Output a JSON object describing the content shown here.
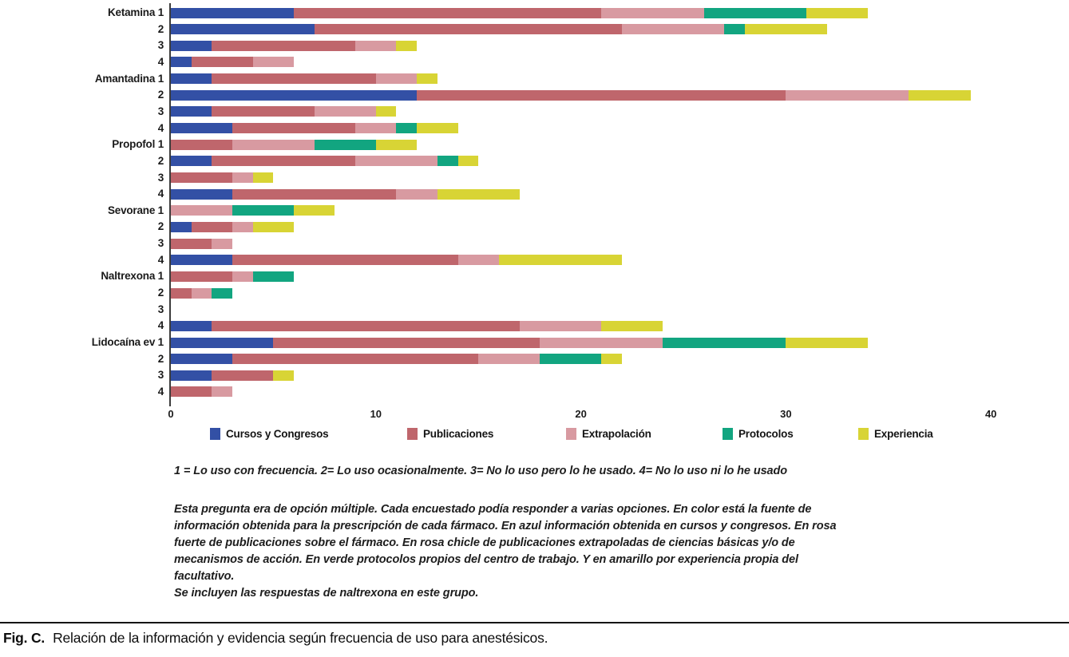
{
  "chart_data": {
    "type": "bar",
    "orientation": "horizontal",
    "stacked": true,
    "title": "",
    "xlabel": "",
    "ylabel": "",
    "xlim": [
      0,
      40
    ],
    "x_ticks": [
      0,
      10,
      20,
      30,
      40
    ],
    "grid": false,
    "legend_position": "bottom",
    "series_names": [
      "Cursos y Congresos",
      "Publicaciones",
      "Extrapolación",
      "Protocolos",
      "Experiencia"
    ],
    "series_colors": [
      "#3350a5",
      "#bf666c",
      "#d89aa1",
      "#12a580",
      "#d8d435"
    ],
    "rows": [
      {
        "label": "Ketamina 1",
        "values": [
          6,
          15,
          5,
          5,
          3
        ]
      },
      {
        "label": "2",
        "values": [
          7,
          15,
          5,
          1,
          4
        ]
      },
      {
        "label": "3",
        "values": [
          2,
          7,
          2,
          0,
          1
        ]
      },
      {
        "label": "4",
        "values": [
          1,
          3,
          2,
          0,
          0
        ]
      },
      {
        "label": "Amantadina 1",
        "values": [
          2,
          8,
          2,
          0,
          1
        ]
      },
      {
        "label": "2",
        "values": [
          12,
          18,
          6,
          0,
          3
        ]
      },
      {
        "label": "3",
        "values": [
          2,
          5,
          3,
          0,
          1
        ]
      },
      {
        "label": "4",
        "values": [
          3,
          6,
          2,
          1,
          2
        ]
      },
      {
        "label": "Propofol 1",
        "values": [
          0,
          3,
          4,
          3,
          2
        ]
      },
      {
        "label": "2",
        "values": [
          2,
          7,
          4,
          1,
          1
        ]
      },
      {
        "label": "3",
        "values": [
          0,
          3,
          1,
          0,
          1
        ]
      },
      {
        "label": "4",
        "values": [
          3,
          8,
          2,
          0,
          4
        ]
      },
      {
        "label": "Sevorane 1",
        "values": [
          0,
          0,
          3,
          3,
          2
        ]
      },
      {
        "label": "2",
        "values": [
          1,
          2,
          1,
          0,
          2
        ]
      },
      {
        "label": "3",
        "values": [
          0,
          2,
          1,
          0,
          0
        ]
      },
      {
        "label": "4",
        "values": [
          3,
          11,
          2,
          0,
          6
        ]
      },
      {
        "label": "Naltrexona 1",
        "values": [
          0,
          3,
          1,
          2,
          0
        ]
      },
      {
        "label": "2",
        "values": [
          0,
          1,
          1,
          1,
          0
        ]
      },
      {
        "label": "3",
        "values": [
          0,
          0,
          0,
          0,
          0
        ]
      },
      {
        "label": "4",
        "values": [
          2,
          15,
          4,
          0,
          3
        ]
      },
      {
        "label": "Lidocaína ev 1",
        "values": [
          5,
          13,
          6,
          6,
          4
        ]
      },
      {
        "label": "2",
        "values": [
          3,
          12,
          3,
          3,
          1
        ]
      },
      {
        "label": "3",
        "values": [
          2,
          3,
          0,
          0,
          1
        ]
      },
      {
        "label": "4",
        "values": [
          0,
          2,
          1,
          0,
          0
        ]
      }
    ]
  },
  "notes": {
    "scale_note": "1 = Lo uso con frecuencia. 2= Lo uso ocasionalmente. 3= No lo uso pero lo he usado. 4= No lo uso ni lo he usado",
    "paragraph_lines": [
      "Esta pregunta era de opción múltiple. Cada encuestado podía responder a varias opciones. En color está la fuente de",
      "información obtenida para la prescripción de cada fármaco. En azul información obtenida en cursos y congresos. En rosa",
      "fuerte de publicaciones sobre el fármaco. En rosa chicle de publicaciones extrapoladas de ciencias básicas y/o de",
      "mecanismos de acción. En verde protocolos propios del centro de trabajo. Y en amarillo por experiencia propia del",
      "facultativo.",
      "Se incluyen las respuestas de naltrexona en este grupo."
    ]
  },
  "caption": {
    "prefix": "Fig. C.",
    "text": "Relación de la información y evidencia según frecuencia de uso para anestésicos."
  }
}
